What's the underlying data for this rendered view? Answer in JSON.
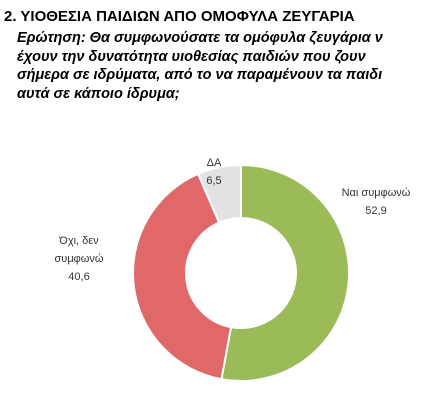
{
  "chart_data": {
    "type": "donut",
    "title": "2. ΥΙΟΘΕΣΙΑ ΠΑΙΔΙΩΝ ΑΠΟ ΟΜΟΦΥΛΑ ΖΕΥΓΑΡΙΑ",
    "subtitle": [
      "Ερώτηση: Θα συμφωνούσατε τα ομόφυλα ζευγάρια ν",
      "έχουν την δυνατότητα υιοθεσίας παιδιών που ζουν",
      "σήμερα σε ιδρύματα, από το να παραμένουν τα παιδι",
      "αυτά σε κάποιο ίδρυμα;"
    ],
    "categories": [
      "Ναι συμφωνώ",
      "Όχι, δεν συμφωνώ",
      "ΔΑ"
    ],
    "values": [
      52.9,
      40.6,
      6.5
    ],
    "value_labels": [
      "52,9",
      "40,6",
      "6,5"
    ],
    "colors": [
      "#9bbb59",
      "#e06868",
      "#e2e2e2"
    ]
  }
}
